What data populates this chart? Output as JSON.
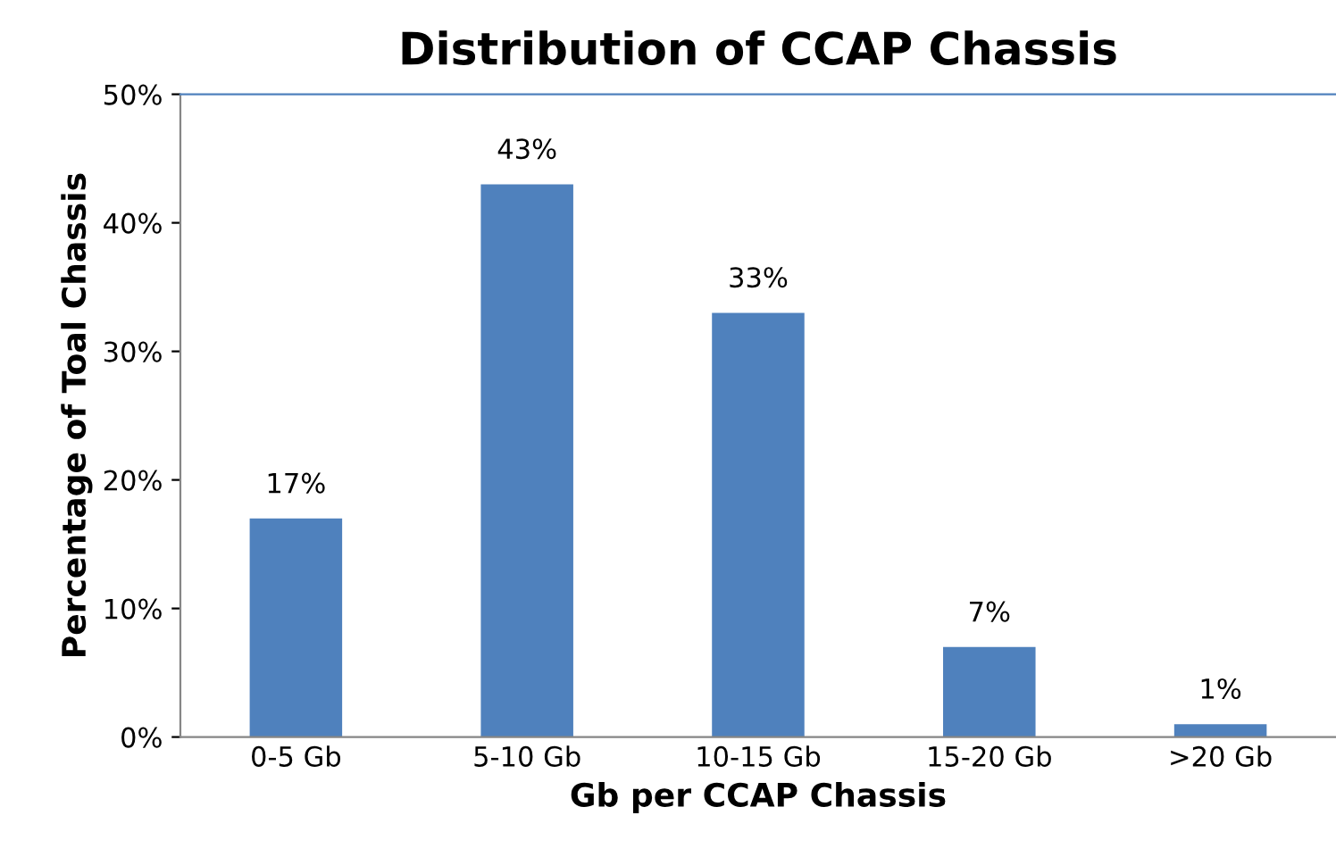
{
  "chart_data": {
    "type": "bar",
    "title": "Distribution of CCAP Chassis",
    "xlabel": "Gb per CCAP Chassis",
    "ylabel": "Percentage of Toal Chassis",
    "categories": [
      "0-5 Gb",
      "5-10 Gb",
      "10-15 Gb",
      "15-20 Gb",
      ">20 Gb"
    ],
    "values": [
      17,
      43,
      33,
      7,
      1
    ],
    "color": "#4f81bd",
    "value_labels": [
      "17%",
      "43%",
      "33%",
      "7%",
      "1%"
    ],
    "ylim": [
      0,
      50
    ],
    "yticks": [
      {
        "value": 0,
        "label": "0%"
      },
      {
        "value": 10,
        "label": "10%"
      },
      {
        "value": 20,
        "label": "20%"
      },
      {
        "value": 30,
        "label": "30%"
      },
      {
        "value": 40,
        "label": "40%"
      },
      {
        "value": 50,
        "label": "50%"
      }
    ],
    "grid": false,
    "legend": false
  }
}
